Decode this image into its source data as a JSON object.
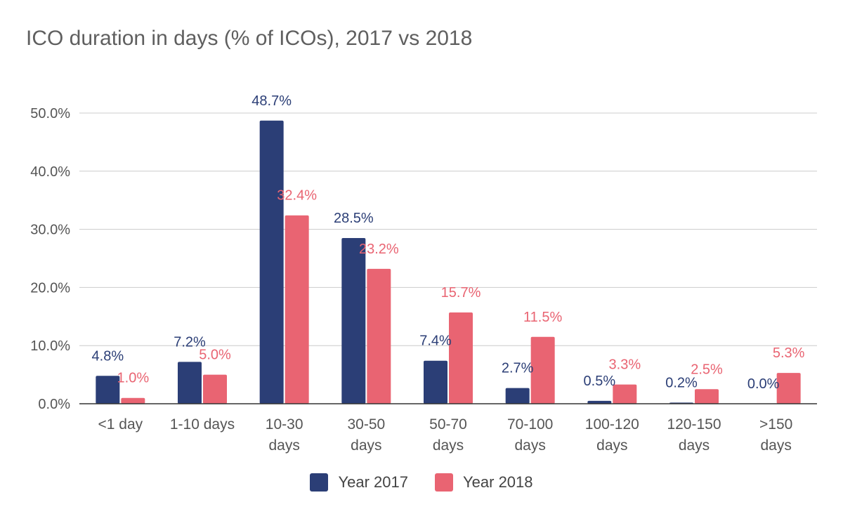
{
  "chart_data": {
    "type": "bar",
    "title": "ICO duration in days (% of ICOs), 2017 vs 2018",
    "xlabel": "",
    "ylabel": "",
    "ylim": [
      0,
      0.5
    ],
    "yticks": [
      0,
      0.1,
      0.2,
      0.3,
      0.4,
      0.5
    ],
    "ytick_labels": [
      "0.0%",
      "10.0%",
      "20.0%",
      "30.0%",
      "40.0%",
      "50.0%"
    ],
    "grid": true,
    "legend_position": "bottom",
    "categories": [
      [
        "<1 day"
      ],
      [
        "1-10 days"
      ],
      [
        "10-30",
        "days"
      ],
      [
        "30-50",
        "days"
      ],
      [
        "50-70",
        "days"
      ],
      [
        "70-100",
        "days"
      ],
      [
        "100-120",
        "days"
      ],
      [
        "120-150",
        "days"
      ],
      [
        ">150",
        "days"
      ]
    ],
    "series": [
      {
        "name": "Year 2017",
        "color": "#2b3e76",
        "values": [
          0.048,
          0.072,
          0.487,
          0.285,
          0.074,
          0.027,
          0.005,
          0.002,
          0.0
        ],
        "labels": [
          "4.8%",
          "7.2%",
          "48.7%",
          "28.5%",
          "7.4%",
          "2.7%",
          "0.5%",
          "0.2%",
          "0.0%"
        ]
      },
      {
        "name": "Year 2018",
        "color": "#e96472",
        "values": [
          0.01,
          0.05,
          0.324,
          0.232,
          0.157,
          0.115,
          0.033,
          0.025,
          0.053
        ],
        "labels": [
          "1.0%",
          "5.0%",
          "32.4%",
          "23.2%",
          "15.7%",
          "11.5%",
          "3.3%",
          "2.5%",
          "5.3%"
        ]
      }
    ]
  }
}
